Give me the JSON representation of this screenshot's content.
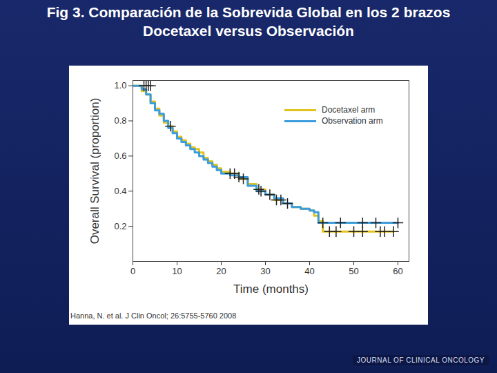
{
  "chart_data": {
    "type": "line",
    "title": "Fig 3. Comparación de la Sobrevida Global en los 2 brazos",
    "subtitle": "Docetaxel versus Observación",
    "x_label": "Time (months)",
    "y_label": "Overall Survival (proportion)",
    "source": "Hanna, N. et al. J Clin Oncol; 26:5755-5760 2008",
    "footer": "JOURNAL OF CLINICAL ONCOLOGY",
    "line_style": "step",
    "legend": "top-right",
    "x": [
      0,
      2,
      3,
      4,
      5,
      6,
      7,
      8,
      9,
      10,
      11,
      12,
      13,
      14,
      15,
      16,
      17,
      18,
      19,
      20,
      22,
      24,
      26,
      28,
      30,
      32,
      34,
      36,
      38,
      40,
      41,
      42,
      43,
      59,
      60
    ],
    "series": [
      {
        "name": "Docetaxel arm",
        "color": "#e3c41e",
        "marker": "plus",
        "values": [
          1,
          0.97,
          0.95,
          0.91,
          0.87,
          0.83,
          0.79,
          0.77,
          0.74,
          0.71,
          0.69,
          0.67,
          0.65,
          0.64,
          0.62,
          0.59,
          0.57,
          0.55,
          0.53,
          0.51,
          0.5,
          0.47,
          0.44,
          0.41,
          0.38,
          0.35,
          0.33,
          0.31,
          0.3,
          0.29,
          0.26,
          0.23,
          0.17,
          0.17,
          null
        ],
        "censored": {
          "x": [
            2.5,
            3.5,
            8.5,
            22,
            23,
            25,
            28.5,
            32.5,
            33.5,
            44.5,
            46,
            50,
            52,
            56,
            57,
            59
          ],
          "y": [
            1,
            1,
            0.77,
            0.5,
            0.5,
            0.47,
            0.41,
            0.35,
            0.35,
            0.17,
            0.17,
            0.17,
            0.17,
            0.17,
            0.17,
            0.17
          ]
        }
      },
      {
        "name": "Observation arm",
        "color": "#3c9ddc",
        "marker": "plus",
        "values": [
          1,
          0.98,
          0.95,
          0.9,
          0.86,
          0.84,
          0.8,
          0.76,
          0.73,
          0.7,
          0.68,
          0.66,
          0.64,
          0.62,
          0.6,
          0.58,
          0.56,
          0.54,
          0.52,
          0.5,
          0.49,
          0.48,
          0.43,
          0.4,
          0.38,
          0.36,
          0.33,
          0.31,
          0.3,
          0.29,
          0.28,
          0.22,
          0.22,
          0.22,
          0.22
        ],
        "censored": {
          "x": [
            3,
            4,
            24,
            29,
            31,
            35,
            43,
            47,
            52,
            55,
            60
          ],
          "y": [
            1,
            1,
            0.48,
            0.4,
            0.38,
            0.33,
            0.22,
            0.22,
            0.22,
            0.22,
            0.22
          ]
        }
      }
    ],
    "xlim": [
      0,
      62.5
    ],
    "xticks": [
      0,
      10,
      20,
      30,
      40,
      50,
      60
    ],
    "ylim": [
      0,
      1.03
    ],
    "yticks": [
      0.2,
      0.4,
      0.6,
      {
        "value": 0.8,
        "label": "0.8"
      },
      {
        "value": 1,
        "label": "1.0"
      }
    ],
    "grid": false
  }
}
